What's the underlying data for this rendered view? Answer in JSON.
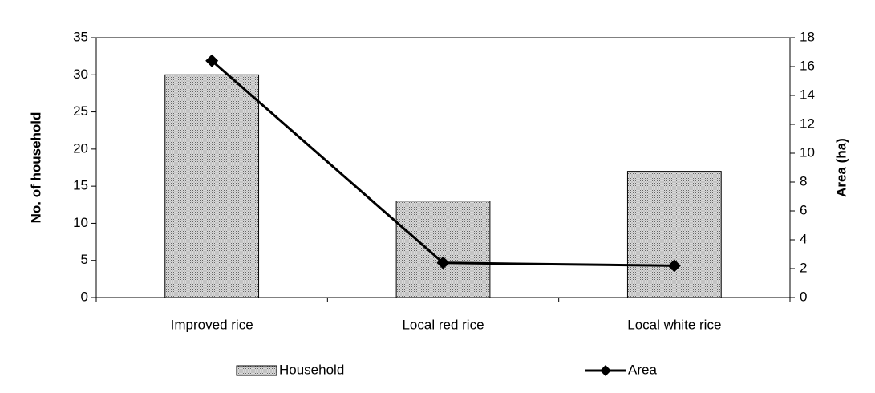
{
  "chart_data": {
    "type": "bar",
    "categories": [
      "Improved rice",
      "Local red rice",
      "Local white rice"
    ],
    "series": [
      {
        "name": "Household",
        "type": "bar",
        "color": "#d8d8d8",
        "values": [
          30,
          13,
          17
        ]
      },
      {
        "name": "Area",
        "type": "line",
        "axis": "y2",
        "color": "#000000",
        "values": [
          16.4,
          2.4,
          2.2
        ]
      }
    ],
    "y_label": "No. of household",
    "y2_label": "Area (ha)",
    "ylim": [
      0,
      35
    ],
    "yticks": [
      0,
      5,
      10,
      15,
      20,
      25,
      30,
      35
    ],
    "y2lim": [
      0,
      18
    ],
    "y2ticks": [
      0,
      2,
      4,
      6,
      8,
      10,
      12,
      14,
      16,
      18
    ],
    "legend": "bottom"
  }
}
